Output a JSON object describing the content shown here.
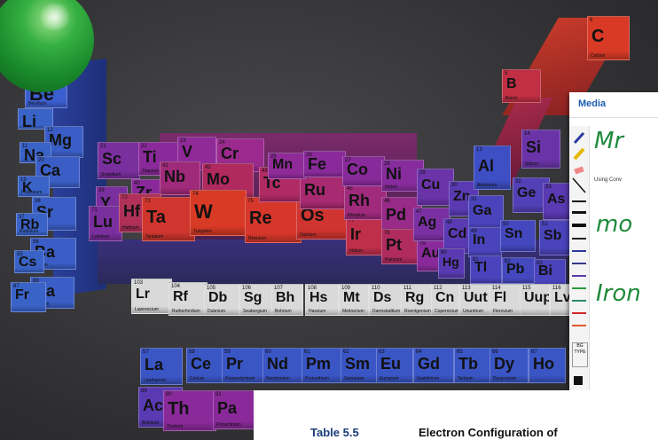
{
  "media_panel": {
    "title": "Media",
    "subtitle": "Using Conv",
    "bg_label": "BG TYPE",
    "handwriting": [
      "Mr",
      "mo",
      "Iron"
    ]
  },
  "document": {
    "caption": "Table 5.5",
    "title": "Electron Configuration of"
  },
  "colors": {
    "blue": "#3a63c8",
    "purple": "#8a2a9a",
    "red": "#d8352a",
    "gray": "#d9d9d9",
    "green_ink": "#1f8a3a"
  },
  "elements": [
    {
      "sym": "Be",
      "num": "",
      "name": "Beryllium",
      "color": "#3c5fcf"
    },
    {
      "sym": "Li",
      "num": "",
      "name": "",
      "color": "#3a63c8"
    },
    {
      "sym": "Mg",
      "num": "12",
      "name": "",
      "color": "#3a5ec6"
    },
    {
      "sym": "Na",
      "num": "11",
      "name": "",
      "color": "#3a63c8"
    },
    {
      "sym": "Ca",
      "num": "20",
      "name": "",
      "color": "#3a5ec6"
    },
    {
      "sym": "K",
      "num": "19",
      "name": "Potassium",
      "color": "#3a63c8"
    },
    {
      "sym": "Sr",
      "num": "38",
      "name": "",
      "color": "#3a5ec6"
    },
    {
      "sym": "Rb",
      "num": "37",
      "name": "Rubidium",
      "color": "#3a63c8"
    },
    {
      "sym": "Ba",
      "num": "56",
      "name": "Barium",
      "color": "#3a5ec6"
    },
    {
      "sym": "Cs",
      "num": "55",
      "name": "",
      "color": "#3a63c8"
    },
    {
      "sym": "Ra",
      "num": "88",
      "name": "Radium",
      "color": "#3a5ec6"
    },
    {
      "sym": "Fr",
      "num": "87",
      "name": "",
      "color": "#3a63c8"
    },
    {
      "sym": "Sc",
      "num": "21",
      "name": "Scandium",
      "color": "#7a2f9e"
    },
    {
      "sym": "Ti",
      "num": "22",
      "name": "Titanium",
      "color": "#8a2a9a"
    },
    {
      "sym": "V",
      "num": "23",
      "name": "",
      "color": "#8f2a98"
    },
    {
      "sym": "Cr",
      "num": "24",
      "name": "",
      "color": "#9a2a8e"
    },
    {
      "sym": "Y",
      "num": "39",
      "name": "",
      "color": "#7a2f9e"
    },
    {
      "sym": "Zr",
      "num": "40",
      "name": "",
      "color": "#8a2a9a"
    },
    {
      "sym": "Nb",
      "num": "41",
      "name": "",
      "color": "#a02a7a"
    },
    {
      "sym": "Mo",
      "num": "42",
      "name": "",
      "color": "#b02a60"
    },
    {
      "sym": "Lu",
      "num": "71",
      "name": "Lutetium",
      "color": "#7a2f9e"
    },
    {
      "sym": "Hf",
      "num": "72",
      "name": "Hafnium",
      "color": "#b0305a"
    },
    {
      "sym": "Ta",
      "num": "73",
      "name": "Tantalum",
      "color": "#d0362e"
    },
    {
      "sym": "W",
      "num": "74",
      "name": "Tungsten",
      "color": "#d83a26"
    },
    {
      "sym": "Re",
      "num": "75",
      "name": "Rhenium",
      "color": "#d6372a"
    },
    {
      "sym": "Os",
      "num": "76",
      "name": "Osmium",
      "color": "#d03430"
    },
    {
      "sym": "Ir",
      "num": "77",
      "name": "Iridium",
      "color": "#c02f4a"
    },
    {
      "sym": "Tc",
      "num": "43",
      "name": "",
      "color": "#b02a64"
    },
    {
      "sym": "Ru",
      "num": "44",
      "name": "",
      "color": "#a82a70"
    },
    {
      "sym": "Rh",
      "num": "45",
      "name": "Rhodium",
      "color": "#a02a7c"
    },
    {
      "sym": "Pd",
      "num": "46",
      "name": "",
      "color": "#982a88"
    },
    {
      "sym": "Pt",
      "num": "78",
      "name": "Platinum",
      "color": "#b02c60"
    },
    {
      "sym": "Au",
      "num": "79",
      "name": "",
      "color": "#8a2a9a"
    },
    {
      "sym": "Mn",
      "num": "25",
      "name": "",
      "color": "#8f2a98"
    },
    {
      "sym": "Fe",
      "num": "26",
      "name": "",
      "color": "#8a2a9a"
    },
    {
      "sym": "Co",
      "num": "27",
      "name": "",
      "color": "#882a9a"
    },
    {
      "sym": "Ni",
      "num": "28",
      "name": "Nickel",
      "color": "#862c9c"
    },
    {
      "sym": "Cu",
      "num": "29",
      "name": "",
      "color": "#6a34a8"
    },
    {
      "sym": "Ag",
      "num": "47",
      "name": "",
      "color": "#7a30a2"
    },
    {
      "sym": "Zn",
      "num": "30",
      "name": "",
      "color": "#5a3ab2"
    },
    {
      "sym": "Cd",
      "num": "48",
      "name": "",
      "color": "#5a3ab2"
    },
    {
      "sym": "Hg",
      "num": "80",
      "name": "",
      "color": "#5a3ab2"
    },
    {
      "sym": "Ga",
      "num": "31",
      "name": "",
      "color": "#4a44bc"
    },
    {
      "sym": "In",
      "num": "49",
      "name": "",
      "color": "#4a44bc"
    },
    {
      "sym": "Tl",
      "num": "81",
      "name": "",
      "color": "#4a44bc"
    },
    {
      "sym": "Al",
      "num": "13",
      "name": "Aluminum",
      "color": "#3e4ec4"
    },
    {
      "sym": "Si",
      "num": "14",
      "name": "Silicon",
      "color": "#6a34a8"
    },
    {
      "sym": "Sn",
      "num": "50",
      "name": "",
      "color": "#4448be"
    },
    {
      "sym": "Pb",
      "num": "82",
      "name": "",
      "color": "#4448be"
    },
    {
      "sym": "Ge",
      "num": "32",
      "name": "",
      "color": "#5240b6"
    },
    {
      "sym": "As",
      "num": "33",
      "name": "",
      "color": "#5a3ab2"
    },
    {
      "sym": "Sb",
      "num": "51",
      "name": "",
      "color": "#4a44bc"
    },
    {
      "sym": "Bi",
      "num": "83",
      "name": "",
      "color": "#4a44bc"
    },
    {
      "sym": "B",
      "num": "5",
      "name": "Boron",
      "color": "#c02f44"
    },
    {
      "sym": "C",
      "num": "6",
      "name": "Carbon",
      "color": "#d83a26"
    },
    {
      "sym": "Lr",
      "num": "103",
      "name": "Lawrencium",
      "color": "#d9d9d9"
    },
    {
      "sym": "Rf",
      "num": "104",
      "name": "Rutherfordium",
      "color": "#d9d9d9"
    },
    {
      "sym": "Db",
      "num": "105",
      "name": "Dubnium",
      "color": "#d9d9d9"
    },
    {
      "sym": "Sg",
      "num": "106",
      "name": "Seaborgium",
      "color": "#d9d9d9"
    },
    {
      "sym": "Bh",
      "num": "107",
      "name": "Bohrium",
      "color": "#d9d9d9"
    },
    {
      "sym": "Hs",
      "num": "108",
      "name": "Hassium",
      "color": "#d9d9d9"
    },
    {
      "sym": "Mt",
      "num": "109",
      "name": "Meitnerium",
      "color": "#d9d9d9"
    },
    {
      "sym": "Ds",
      "num": "110",
      "name": "Darmstadtium",
      "color": "#d9d9d9"
    },
    {
      "sym": "Rg",
      "num": "111",
      "name": "Roentgenium",
      "color": "#d9d9d9"
    },
    {
      "sym": "Cn",
      "num": "112",
      "name": "Copernicium",
      "color": "#d9d9d9"
    },
    {
      "sym": "Uut",
      "num": "113",
      "name": "Ununtrium",
      "color": "#d9d9d9"
    },
    {
      "sym": "Fl",
      "num": "114",
      "name": "Flerovium",
      "color": "#d9d9d9"
    },
    {
      "sym": "Uup",
      "num": "115",
      "name": "",
      "color": "#d9d9d9"
    },
    {
      "sym": "Lv",
      "num": "116",
      "name": "",
      "color": "#d9d9d9"
    },
    {
      "sym": "La",
      "num": "57",
      "name": "Lanthanum",
      "color": "#3a55c4"
    },
    {
      "sym": "Ce",
      "num": "58",
      "name": "Cerium",
      "color": "#3a55c4"
    },
    {
      "sym": "Pr",
      "num": "59",
      "name": "Praseodymium",
      "color": "#3a55c4"
    },
    {
      "sym": "Nd",
      "num": "60",
      "name": "Neodymium",
      "color": "#3a55c4"
    },
    {
      "sym": "Pm",
      "num": "61",
      "name": "Promethium",
      "color": "#3a55c4"
    },
    {
      "sym": "Sm",
      "num": "62",
      "name": "Samarium",
      "color": "#3a55c4"
    },
    {
      "sym": "Eu",
      "num": "63",
      "name": "Europium",
      "color": "#3a55c4"
    },
    {
      "sym": "Gd",
      "num": "64",
      "name": "Gadolinium",
      "color": "#3a55c4"
    },
    {
      "sym": "Tb",
      "num": "65",
      "name": "Terbium",
      "color": "#3a55c4"
    },
    {
      "sym": "Dy",
      "num": "66",
      "name": "Dysprosium",
      "color": "#3a55c4"
    },
    {
      "sym": "Ho",
      "num": "67",
      "name": "",
      "color": "#3a55c4"
    },
    {
      "sym": "Ac",
      "num": "89",
      "name": "Actinium",
      "color": "#5a3ab2"
    },
    {
      "sym": "Th",
      "num": "90",
      "name": "Thorium",
      "color": "#8a2a9a"
    },
    {
      "sym": "Pa",
      "num": "91",
      "name": "Protactinium",
      "color": "#8a2a9a"
    }
  ]
}
